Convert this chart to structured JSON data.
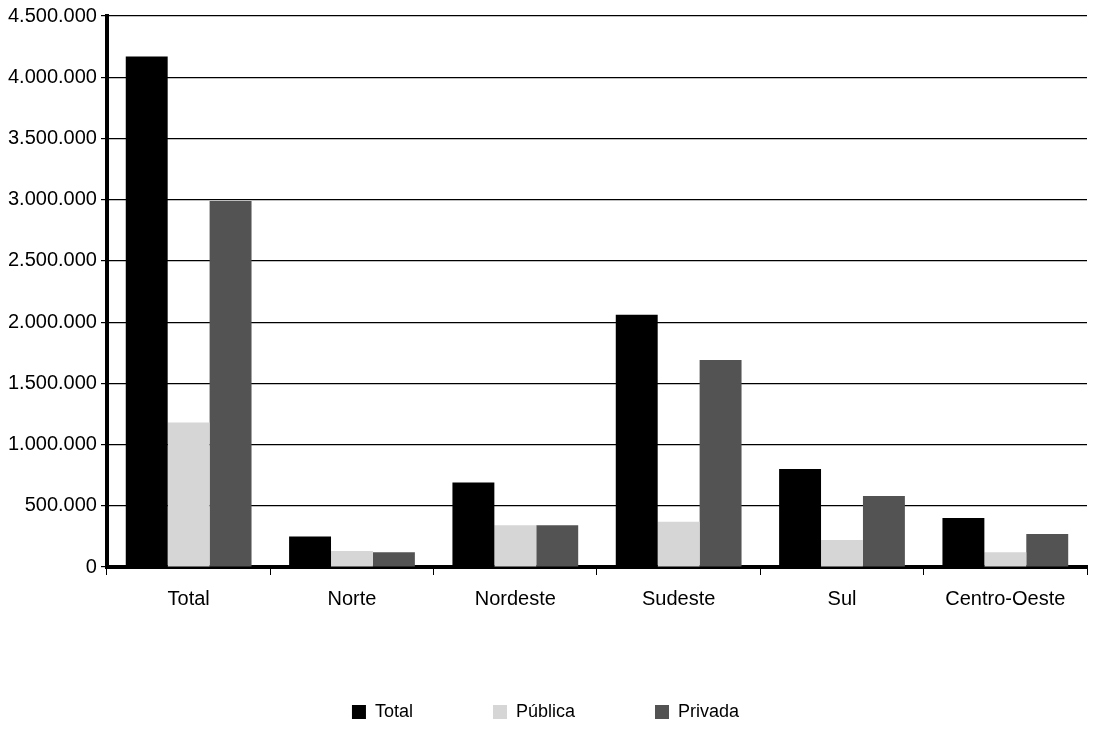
{
  "chart_data": {
    "type": "bar",
    "categories": [
      "Total",
      "Norte",
      "Nordeste",
      "Sudeste",
      "Sul",
      "Centro-Oeste"
    ],
    "series": [
      {
        "name": "Total",
        "color": "#000000",
        "values": [
          4170000,
          250000,
          690000,
          2060000,
          800000,
          400000
        ]
      },
      {
        "name": "Pública",
        "color": "#d6d6d6",
        "values": [
          1180000,
          130000,
          340000,
          370000,
          220000,
          120000
        ]
      },
      {
        "name": "Privada",
        "color": "#535353",
        "values": [
          2990000,
          120000,
          340000,
          1690000,
          580000,
          270000
        ]
      }
    ],
    "ylim": [
      0,
      4500000
    ],
    "yticks": [
      {
        "value": 0,
        "label": "0"
      },
      {
        "value": 500000,
        "label": "500.000"
      },
      {
        "value": 1000000,
        "label": "1.000.000"
      },
      {
        "value": 1500000,
        "label": "1.500.000"
      },
      {
        "value": 2000000,
        "label": "2.000.000"
      },
      {
        "value": 2500000,
        "label": "2.500.000"
      },
      {
        "value": 3000000,
        "label": "3.000.000"
      },
      {
        "value": 3500000,
        "label": "3.500.000"
      },
      {
        "value": 4000000,
        "label": "4.000.000"
      },
      {
        "value": 4500000,
        "label": "4.500.000"
      }
    ],
    "grid": "y",
    "legend": "bottom"
  }
}
